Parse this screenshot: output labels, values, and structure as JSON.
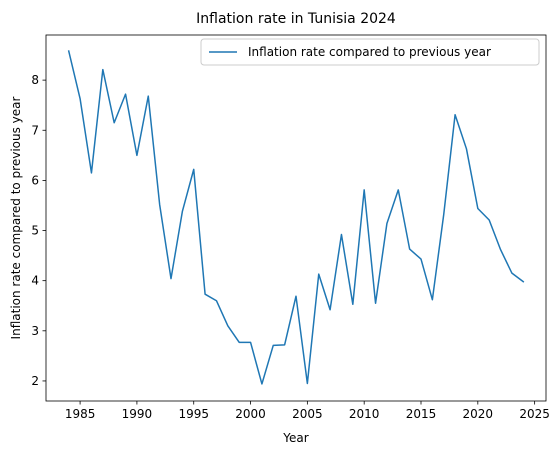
{
  "chart_data": {
    "type": "line",
    "title": "Inflation rate in Tunisia 2024",
    "xlabel": "Year",
    "ylabel": "Inflation rate compared to previous year",
    "xlim": [
      1982,
      2026
    ],
    "ylim": [
      1.6,
      8.9
    ],
    "xticks": [
      1985,
      1990,
      1995,
      2000,
      2005,
      2010,
      2015,
      2020,
      2025
    ],
    "yticks": [
      2,
      3,
      4,
      5,
      6,
      7,
      8
    ],
    "grid": false,
    "legend_position": "upper right",
    "series": [
      {
        "name": "Inflation rate compared to previous year",
        "color": "#1f77b4",
        "x": [
          1984,
          1985,
          1986,
          1987,
          1988,
          1989,
          1990,
          1991,
          1992,
          1993,
          1994,
          1995,
          1996,
          1997,
          1998,
          1999,
          2000,
          2001,
          2002,
          2003,
          2004,
          2005,
          2006,
          2007,
          2008,
          2009,
          2010,
          2011,
          2012,
          2013,
          2014,
          2015,
          2016,
          2017,
          2018,
          2019,
          2020,
          2021,
          2022,
          2023,
          2024
        ],
        "y": [
          8.58,
          7.63,
          6.15,
          8.21,
          7.15,
          7.72,
          6.5,
          7.68,
          5.52,
          4.04,
          5.38,
          6.22,
          3.73,
          3.6,
          3.1,
          2.77,
          2.77,
          1.94,
          2.71,
          2.72,
          3.69,
          1.95,
          4.13,
          3.42,
          4.92,
          3.53,
          5.81,
          3.55,
          5.14,
          5.81,
          4.63,
          4.43,
          3.62,
          5.32,
          7.31,
          6.63,
          5.44,
          5.21,
          4.62,
          4.15,
          3.98
        ]
      }
    ]
  }
}
